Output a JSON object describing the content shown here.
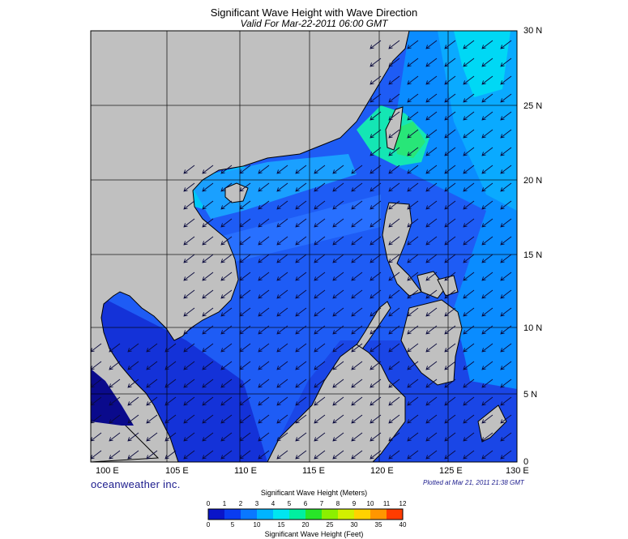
{
  "title": "Significant Wave Height with Wave Direction",
  "subtitle": "Valid For Mar-22-2011 06:00 GMT",
  "lat_labels": [
    "30 N",
    "25 N",
    "20 N",
    "15 N",
    "10 N",
    "5 N",
    "0"
  ],
  "lon_labels": [
    "100 E",
    "105 E",
    "110 E",
    "115 E",
    "120 E",
    "125 E",
    "130 E"
  ],
  "brand": "oceanweather inc.",
  "plotted": "Plotted at Mar 21, 2011 21:38 GMT",
  "colorbar": {
    "title_meters": "Significant Wave Height (Meters)",
    "title_feet": "Significant Wave Height (Feet)",
    "meters_ticks": [
      "0",
      "1",
      "2",
      "3",
      "4",
      "5",
      "6",
      "7",
      "8",
      "9",
      "10",
      "11",
      "12"
    ],
    "feet_ticks": [
      "0",
      "5",
      "10",
      "15",
      "20",
      "25",
      "30",
      "35",
      "40"
    ],
    "colors": [
      "#0a14c8",
      "#0a3cf0",
      "#0a78ff",
      "#00b4ff",
      "#00e6f0",
      "#00f0a0",
      "#28e628",
      "#8cf000",
      "#d2f000",
      "#ffd200",
      "#ff9600",
      "#ff3c00"
    ]
  },
  "colors": {
    "land": "#c0c0c0",
    "water_low": "#1e64ff",
    "water_mid": "#0096ff",
    "water_high": "#00e6f0",
    "arrow": "#0a0a3c"
  },
  "wave_direction": "arrows pointing south-west from north-east"
}
